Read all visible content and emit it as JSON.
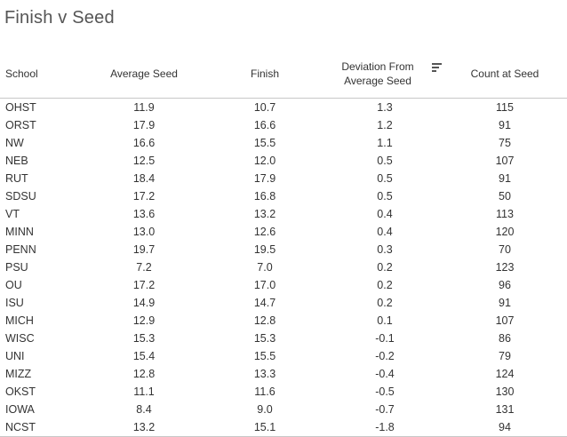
{
  "title": "Finish v Seed",
  "columns": {
    "school": "School",
    "average_seed": "Average Seed",
    "finish": "Finish",
    "deviation_line1": "Deviation From",
    "deviation_line2": "Average Seed",
    "count": "Count at Seed"
  },
  "sort_icon": "sort-descending-icon",
  "rows": [
    {
      "school": "OHST",
      "avg": "11.9",
      "finish": "10.7",
      "dev": "1.3",
      "count": "115"
    },
    {
      "school": "ORST",
      "avg": "17.9",
      "finish": "16.6",
      "dev": "1.2",
      "count": "91"
    },
    {
      "school": "NW",
      "avg": "16.6",
      "finish": "15.5",
      "dev": "1.1",
      "count": "75"
    },
    {
      "school": "NEB",
      "avg": "12.5",
      "finish": "12.0",
      "dev": "0.5",
      "count": "107"
    },
    {
      "school": "RUT",
      "avg": "18.4",
      "finish": "17.9",
      "dev": "0.5",
      "count": "91"
    },
    {
      "school": "SDSU",
      "avg": "17.2",
      "finish": "16.8",
      "dev": "0.5",
      "count": "50"
    },
    {
      "school": "VT",
      "avg": "13.6",
      "finish": "13.2",
      "dev": "0.4",
      "count": "113"
    },
    {
      "school": "MINN",
      "avg": "13.0",
      "finish": "12.6",
      "dev": "0.4",
      "count": "120"
    },
    {
      "school": "PENN",
      "avg": "19.7",
      "finish": "19.5",
      "dev": "0.3",
      "count": "70"
    },
    {
      "school": "PSU",
      "avg": "7.2",
      "finish": "7.0",
      "dev": "0.2",
      "count": "123"
    },
    {
      "school": "OU",
      "avg": "17.2",
      "finish": "17.0",
      "dev": "0.2",
      "count": "96"
    },
    {
      "school": "ISU",
      "avg": "14.9",
      "finish": "14.7",
      "dev": "0.2",
      "count": "91"
    },
    {
      "school": "MICH",
      "avg": "12.9",
      "finish": "12.8",
      "dev": "0.1",
      "count": "107"
    },
    {
      "school": "WISC",
      "avg": "15.3",
      "finish": "15.3",
      "dev": "-0.1",
      "count": "86"
    },
    {
      "school": "UNI",
      "avg": "15.4",
      "finish": "15.5",
      "dev": "-0.2",
      "count": "79"
    },
    {
      "school": "MIZZ",
      "avg": "12.8",
      "finish": "13.3",
      "dev": "-0.4",
      "count": "124"
    },
    {
      "school": "OKST",
      "avg": "11.1",
      "finish": "11.6",
      "dev": "-0.5",
      "count": "130"
    },
    {
      "school": "IOWA",
      "avg": "8.4",
      "finish": "9.0",
      "dev": "-0.7",
      "count": "131"
    },
    {
      "school": "NCST",
      "avg": "13.2",
      "finish": "15.1",
      "dev": "-1.8",
      "count": "94"
    }
  ]
}
